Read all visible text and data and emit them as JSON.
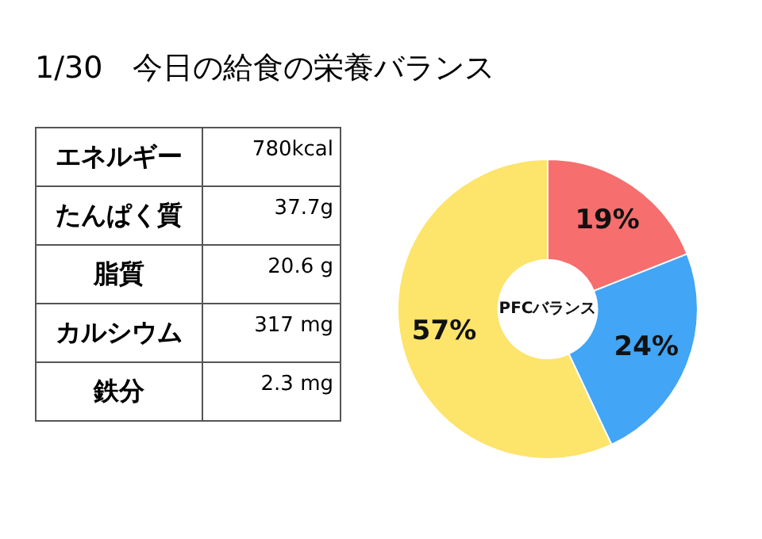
{
  "chart_data": [
    {
      "type": "other",
      "title": "1/30　今日の給食の栄養バランス",
      "annotations": [
        "エネルギー",
        "780kcal",
        "たんぱく質",
        "37.7g",
        "脂質",
        "20.6 g",
        "カルシウム",
        "317 mg",
        "鉄分",
        "2.3 mg"
      ]
    },
    {
      "type": "donut",
      "categories": [
        null,
        null,
        null
      ],
      "values": [
        19,
        24,
        57
      ],
      "colors": [
        "#f76e6e",
        "#42a5f5",
        "#fde46a"
      ],
      "value_labels": [
        "19%",
        "24%",
        "57%"
      ],
      "annotations": [
        "PFCバランス"
      ],
      "legend": false
    }
  ]
}
